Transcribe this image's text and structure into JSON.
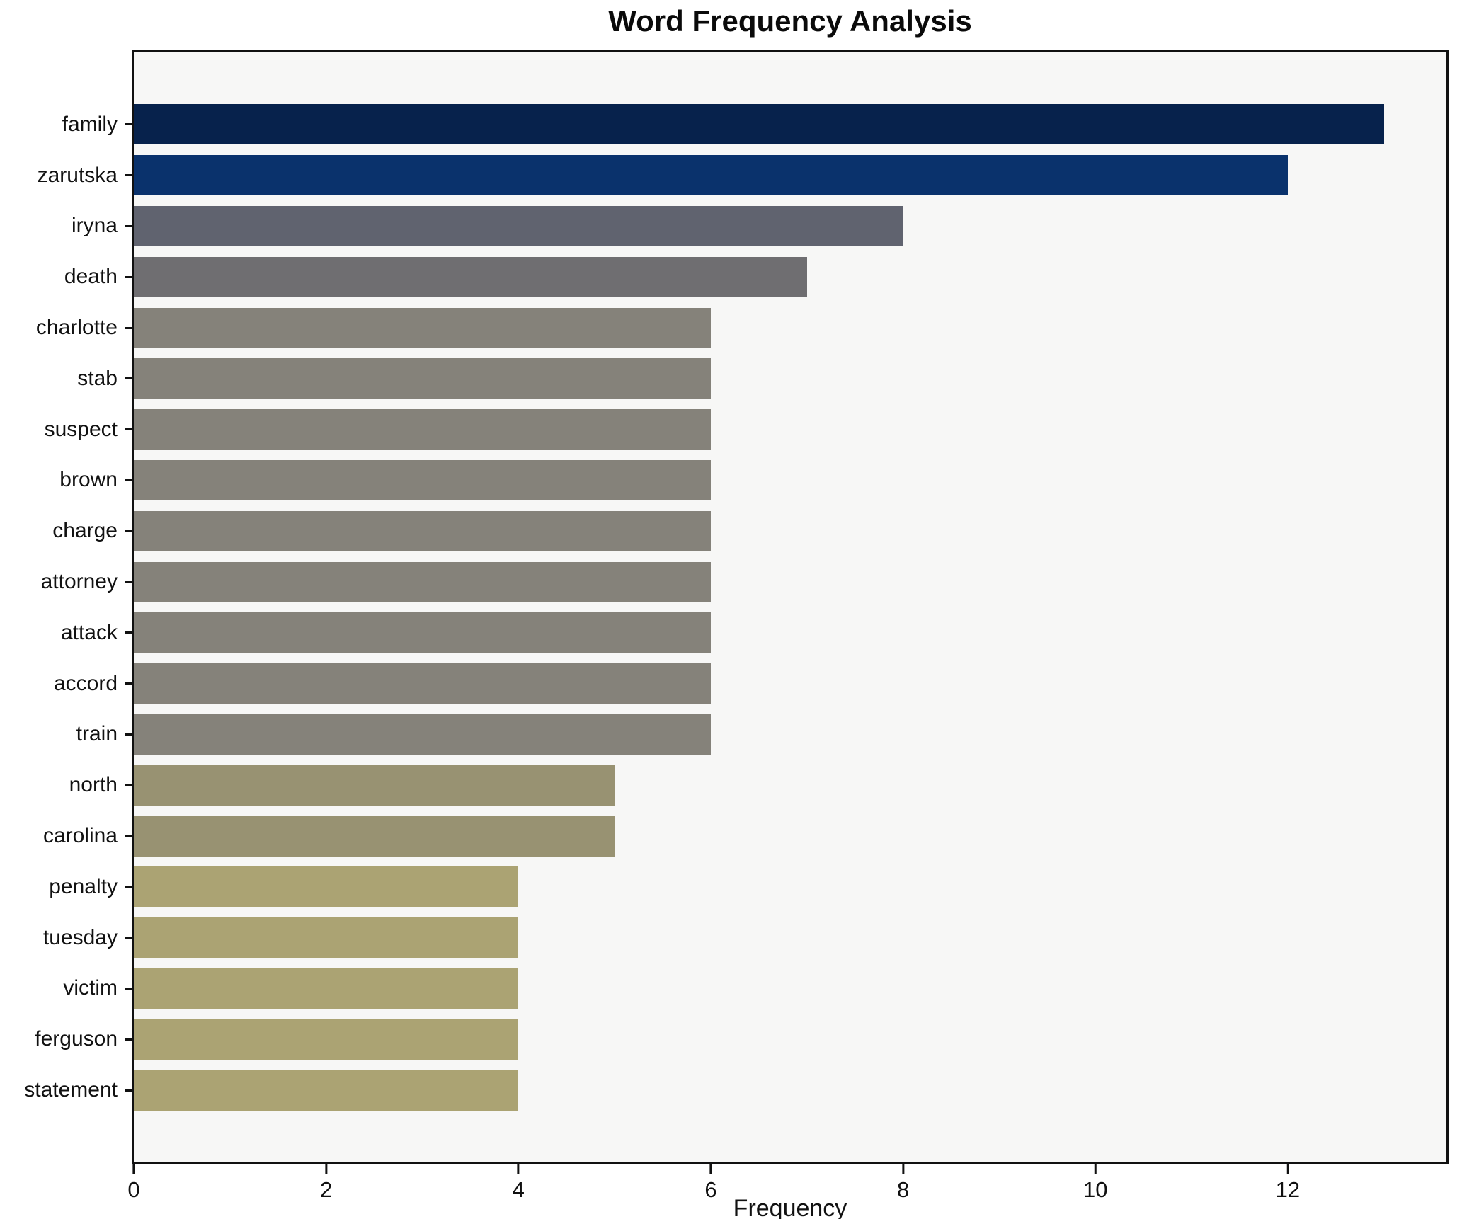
{
  "title": "Word Frequency Analysis",
  "chart_data": {
    "type": "bar",
    "orientation": "horizontal",
    "title": "Word Frequency Analysis",
    "xlabel": "Frequency",
    "ylabel": "",
    "categories": [
      "family",
      "zarutska",
      "iryna",
      "death",
      "charlotte",
      "stab",
      "suspect",
      "brown",
      "charge",
      "attorney",
      "attack",
      "accord",
      "train",
      "north",
      "carolina",
      "penalty",
      "tuesday",
      "victim",
      "ferguson",
      "statement"
    ],
    "values": [
      13,
      12,
      8,
      7,
      6,
      6,
      6,
      6,
      6,
      6,
      6,
      6,
      6,
      5,
      5,
      4,
      4,
      4,
      4,
      4
    ],
    "bar_colors": [
      "#07224c",
      "#0a326c",
      "#60636f",
      "#6f6e71",
      "#85827a",
      "#85827a",
      "#85827a",
      "#85827a",
      "#85827a",
      "#85827a",
      "#85827a",
      "#85827a",
      "#85827a",
      "#989272",
      "#989272",
      "#aba373",
      "#aba373",
      "#aba373",
      "#aba373",
      "#aba373"
    ],
    "xlim": [
      0,
      13.65
    ],
    "xticks": [
      0,
      2,
      4,
      6,
      8,
      10,
      12
    ],
    "grid": false,
    "legend": "none",
    "plot_background": "#f7f7f6",
    "figure_background": "#ffffff",
    "spine_color": "#111111"
  }
}
